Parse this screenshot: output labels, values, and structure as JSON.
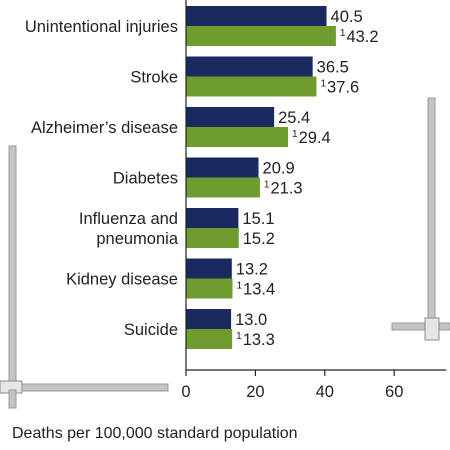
{
  "chart_data": {
    "type": "bar",
    "orientation": "horizontal",
    "categories": [
      [
        "Unintentional injuries"
      ],
      [
        "Stroke"
      ],
      [
        "Alzheimer’s disease"
      ],
      [
        "Diabetes"
      ],
      [
        "Influenza and",
        "pneumonia"
      ],
      [
        "Kidney disease"
      ],
      [
        "Suicide"
      ]
    ],
    "series": [
      {
        "color": "#1b2a5e",
        "values": [
          40.5,
          36.5,
          25.4,
          20.9,
          15.1,
          13.2,
          13.0
        ],
        "labels": [
          "40.5",
          "36.5",
          "25.4",
          "20.9",
          "15.1",
          "13.2",
          "13.0"
        ],
        "marks": [
          "",
          "",
          "",
          "",
          "",
          "",
          ""
        ]
      },
      {
        "color": "#6e9c2f",
        "values": [
          43.2,
          37.6,
          29.4,
          21.3,
          15.2,
          13.4,
          13.3
        ],
        "labels": [
          "43.2",
          "37.6",
          "29.4",
          "21.3",
          "15.2",
          "13.4",
          "13.3"
        ],
        "marks": [
          "1",
          "1",
          "1",
          "1",
          "",
          "1",
          "1"
        ]
      }
    ],
    "xticks": [
      "0",
      "20",
      "40",
      "60"
    ],
    "xlim": [
      0,
      75
    ],
    "xlabel": "Deaths per 100,000 standard population",
    "grid": false
  }
}
